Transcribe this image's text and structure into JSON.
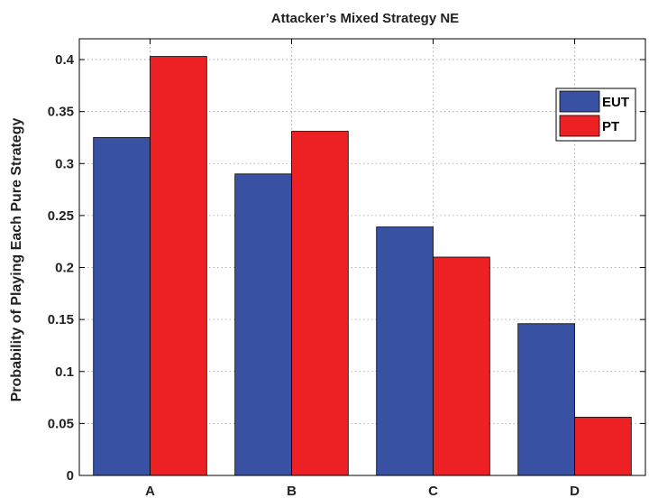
{
  "chart_data": {
    "type": "bar",
    "title": "Attacker’s Mixed Strategy NE",
    "xlabel": "",
    "ylabel": "Probability of Playing Each Pure Strategy",
    "categories": [
      "A",
      "B",
      "C",
      "D"
    ],
    "series": [
      {
        "name": "EUT",
        "color": "#3851a3",
        "values": [
          0.325,
          0.29,
          0.239,
          0.146
        ]
      },
      {
        "name": "PT",
        "color": "#ed2124",
        "values": [
          0.403,
          0.331,
          0.21,
          0.056
        ]
      }
    ],
    "ylim": [
      0,
      0.42
    ],
    "yticks": [
      0,
      0.05,
      0.1,
      0.15,
      0.2,
      0.25,
      0.3,
      0.35,
      0.4
    ],
    "ytick_labels": [
      "0",
      "0.05",
      "0.1",
      "0.15",
      "0.2",
      "0.25",
      "0.3",
      "0.35",
      "0.4"
    ],
    "grid": true,
    "legend_position": "top-right"
  }
}
